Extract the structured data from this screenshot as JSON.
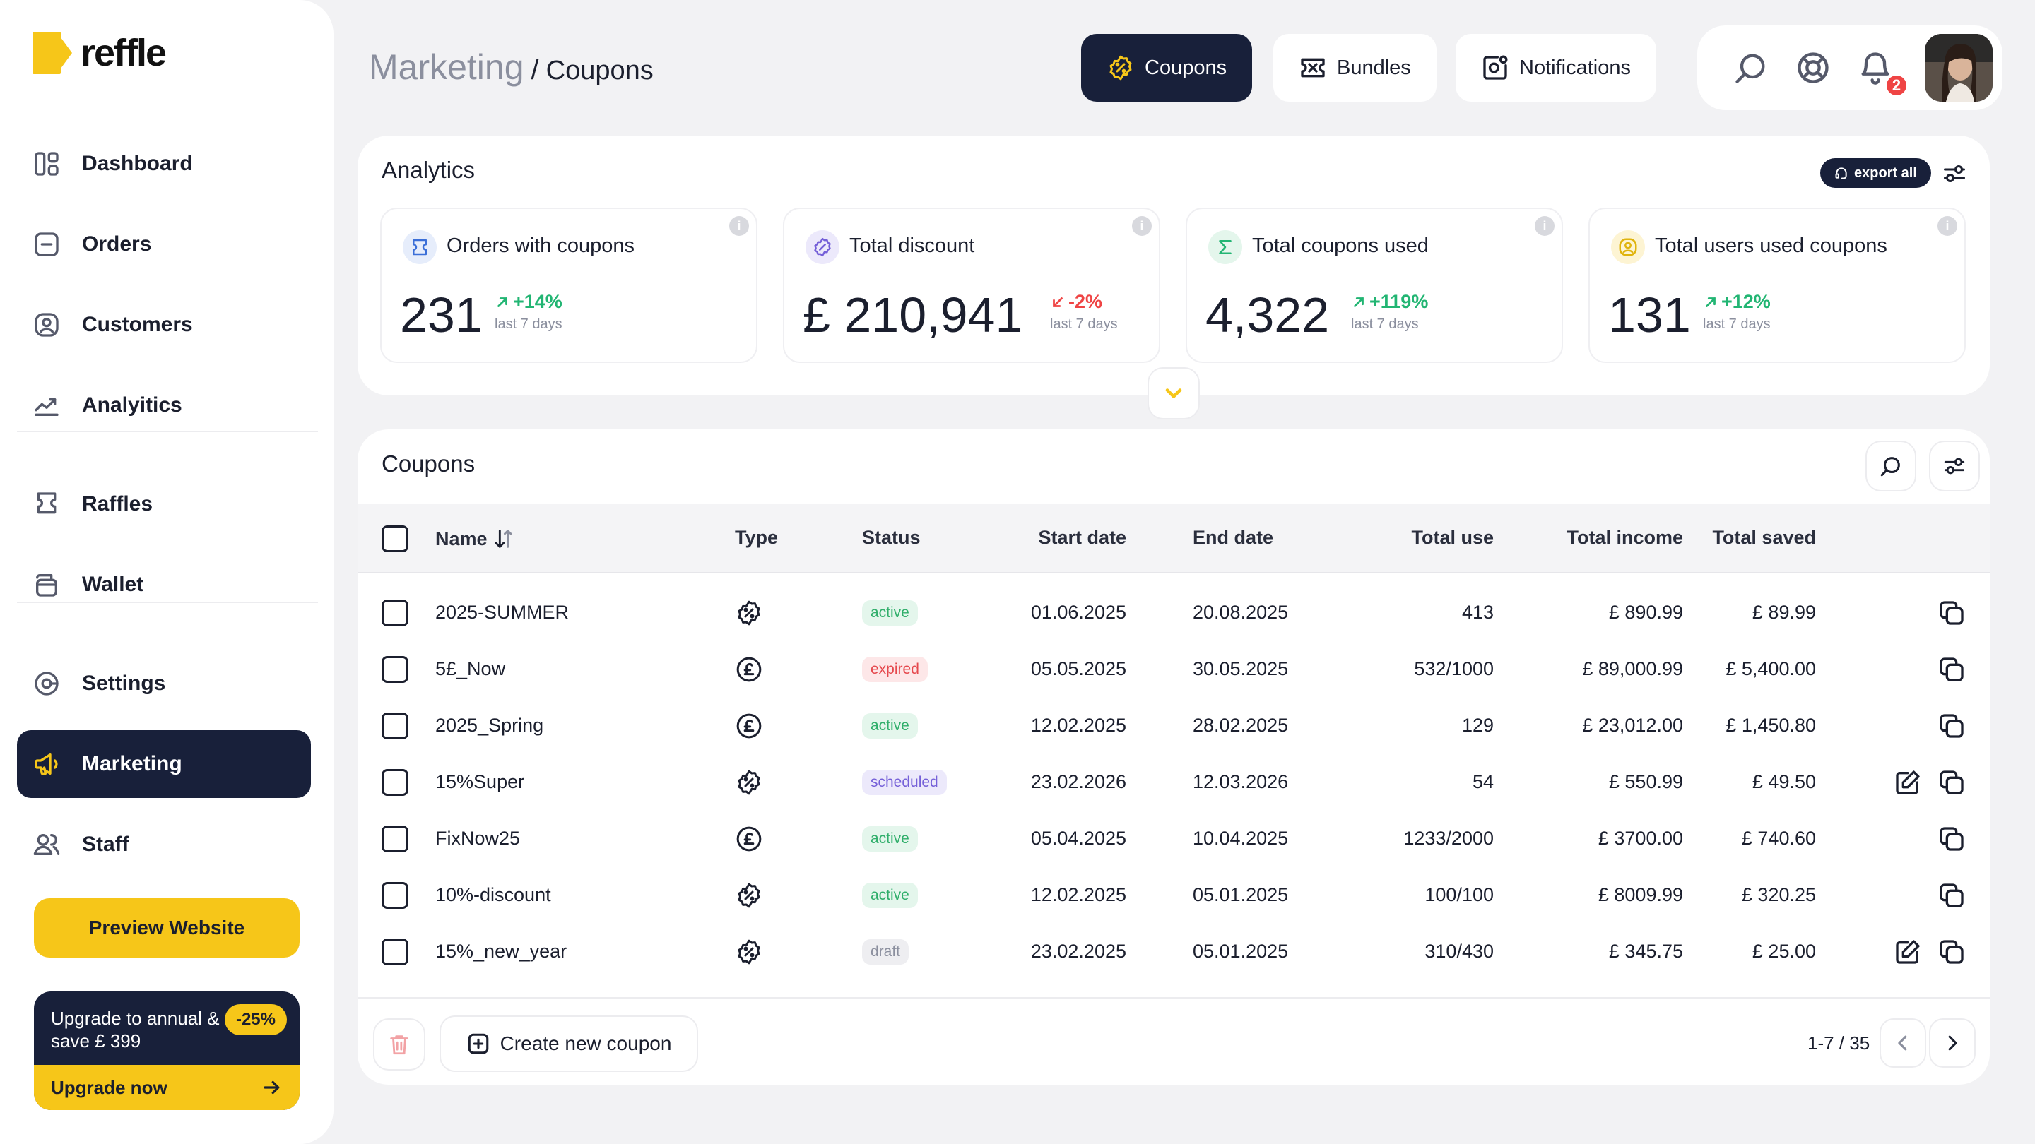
{
  "app": {
    "logo_text": "reffle",
    "brand_color": "#f6c619",
    "dark_color": "#18203a"
  },
  "sidebar": {
    "items": [
      {
        "label": "Dashboard",
        "icon": "dashboard-icon"
      },
      {
        "label": "Orders",
        "icon": "orders-icon"
      },
      {
        "label": "Customers",
        "icon": "customers-icon"
      },
      {
        "label": "Analyitics",
        "icon": "analytics-icon"
      },
      {
        "label": "Raffles",
        "icon": "raffles-icon"
      },
      {
        "label": "Wallet",
        "icon": "wallet-icon"
      },
      {
        "label": "Settings",
        "icon": "settings-icon"
      },
      {
        "label": "Marketing",
        "icon": "megaphone-icon",
        "active": true
      },
      {
        "label": "Staff",
        "icon": "staff-icon"
      }
    ],
    "preview_label": "Preview Website",
    "upgrade": {
      "text": "Upgrade to annual & save £ 399",
      "badge": "-25%",
      "cta": "Upgrade now"
    }
  },
  "header": {
    "breadcrumb_root": "Marketing",
    "breadcrumb_sep": "/",
    "breadcrumb_page": "Coupons",
    "tabs": [
      {
        "label": "Coupons",
        "icon": "coupon-icon",
        "active": true
      },
      {
        "label": "Bundles",
        "icon": "bundle-icon"
      },
      {
        "label": "Notifications",
        "icon": "notification-box-icon"
      }
    ],
    "notification_count": "2"
  },
  "analytics": {
    "title": "Analytics",
    "export_label": "export all",
    "stats": [
      {
        "label": "Orders with coupons",
        "value": "231",
        "change": "+14%",
        "direction": "up",
        "period": "last 7 days",
        "icon": "ticket-icon",
        "icon_color": "#3b6fd8",
        "icon_bg": "#e6edfb"
      },
      {
        "label": "Total discount",
        "value": "£ 210,941",
        "change": "-2%",
        "direction": "down",
        "period": "last 7 days",
        "icon": "discount-icon",
        "icon_color": "#7560d8",
        "icon_bg": "#ece9fb"
      },
      {
        "label": "Total coupons used",
        "value": "4,322",
        "change": "+119%",
        "direction": "up",
        "period": "last 7 days",
        "icon": "sigma-icon",
        "icon_color": "#22b573",
        "icon_bg": "#e4f6ec"
      },
      {
        "label": "Total users used coupons",
        "value": "131",
        "change": "+12%",
        "direction": "up",
        "period": "last 7 days",
        "icon": "user-circle-icon",
        "icon_color": "#e0b40e",
        "icon_bg": "#fdf4d3"
      }
    ]
  },
  "coupons": {
    "title": "Coupons",
    "columns": {
      "name": "Name",
      "type": "Type",
      "status": "Status",
      "start": "Start date",
      "end": "End date",
      "use": "Total use",
      "income": "Total income",
      "saved": "Total saved"
    },
    "rows": [
      {
        "name": "2025-SUMMER",
        "type": "percent",
        "status": "active",
        "start": "01.06.2025",
        "end": "20.08.2025",
        "use": "413",
        "income": "£ 890.99",
        "saved": "£ 89.99",
        "editable": false
      },
      {
        "name": "5£_Now",
        "type": "fixed",
        "status": "expired",
        "start": "05.05.2025",
        "end": "30.05.2025",
        "use": "532/1000",
        "income": "£ 89,000.99",
        "saved": "£ 5,400.00",
        "editable": false
      },
      {
        "name": "2025_Spring",
        "type": "fixed",
        "status": "active",
        "start": "12.02.2025",
        "end": "28.02.2025",
        "use": "129",
        "income": "£ 23,012.00",
        "saved": "£ 1,450.80",
        "editable": false
      },
      {
        "name": "15%Super",
        "type": "percent",
        "status": "scheduled",
        "start": "23.02.2026",
        "end": "12.03.2026",
        "use": "54",
        "income": "£ 550.99",
        "saved": "£ 49.50",
        "editable": true
      },
      {
        "name": "FixNow25",
        "type": "fixed",
        "status": "active",
        "start": "05.04.2025",
        "end": "10.04.2025",
        "use": "1233/2000",
        "income": "£ 3700.00",
        "saved": "£ 740.60",
        "editable": false
      },
      {
        "name": "10%-discount",
        "type": "percent",
        "status": "active",
        "start": "12.02.2025",
        "end": "05.01.2025",
        "use": "100/100",
        "income": "£ 8009.99",
        "saved": "£ 320.25",
        "editable": false
      },
      {
        "name": "15%_new_year",
        "type": "percent",
        "status": "draft",
        "start": "23.02.2025",
        "end": "05.01.2025",
        "use": "310/430",
        "income": "£ 345.75",
        "saved": "£ 25.00",
        "editable": true
      }
    ],
    "create_label": "Create new coupon",
    "pagination": "1-7 / 35"
  }
}
